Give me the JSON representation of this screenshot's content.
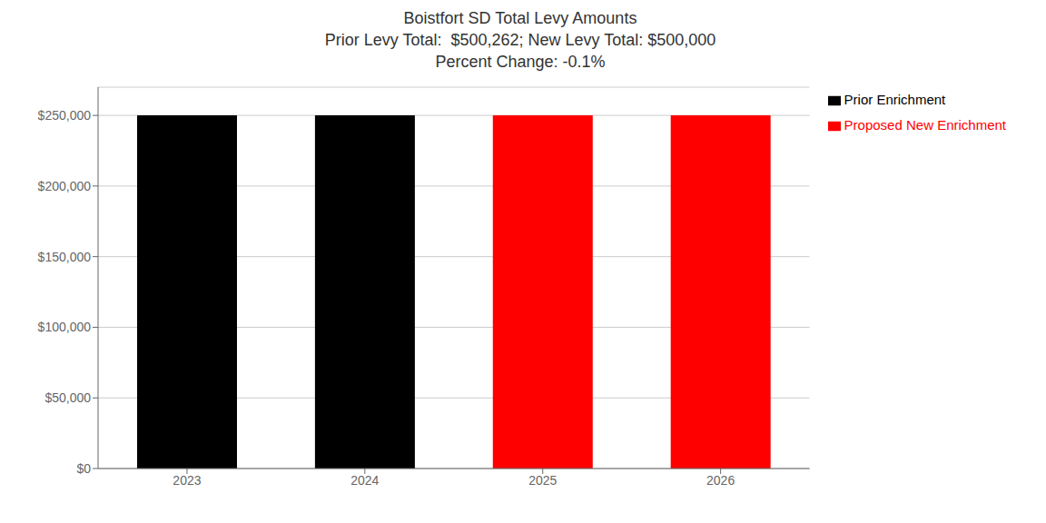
{
  "chart_data": {
    "type": "bar",
    "title": "Boistfort SD Total Levy Amounts\nPrior Levy Total:  $500,262; New Levy Total: $500,000\nPercent Change: -0.1%",
    "categories": [
      "2023",
      "2024",
      "2025",
      "2026"
    ],
    "series": [
      {
        "name": "Prior Enrichment",
        "color": "#000000",
        "values": [
          250131,
          250131,
          null,
          null
        ]
      },
      {
        "name": "Proposed New Enrichment",
        "color": "#ff0000",
        "values": [
          null,
          null,
          250000,
          250000
        ]
      }
    ],
    "stacked": true,
    "ylim": [
      0,
      270000
    ],
    "yticks": [
      {
        "value": 0,
        "label": "$0"
      },
      {
        "value": 50000,
        "label": "$50,000"
      },
      {
        "value": 100000,
        "label": "$100,000"
      },
      {
        "value": 150000,
        "label": "$150,000"
      },
      {
        "value": 200000,
        "label": "$200,000"
      },
      {
        "value": 250000,
        "label": "$250,000"
      }
    ],
    "grid": true,
    "legend": "right"
  }
}
